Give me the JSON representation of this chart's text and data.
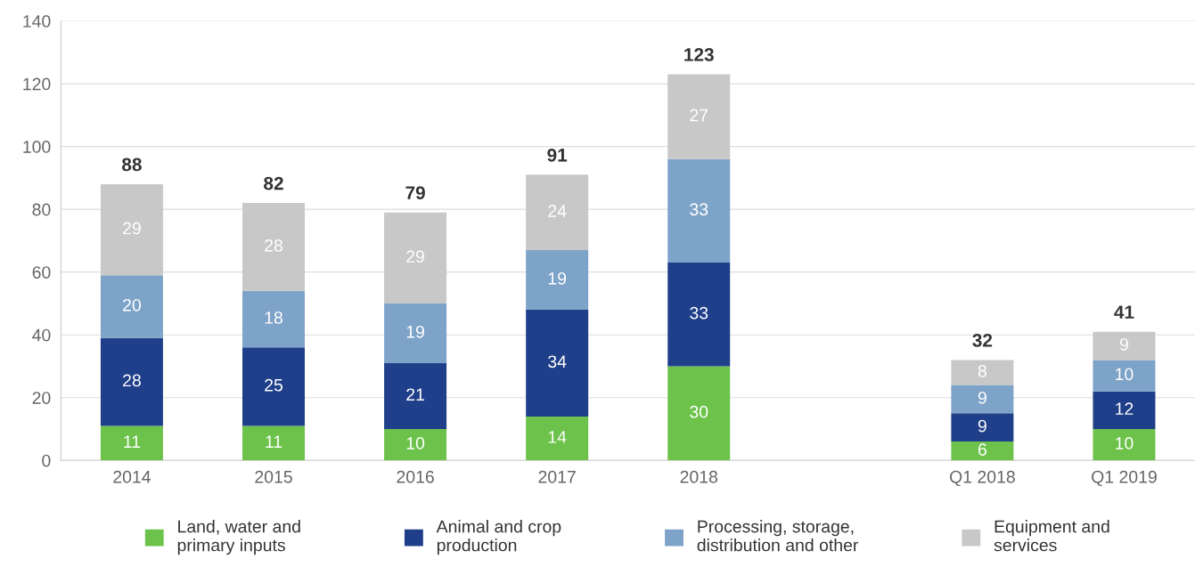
{
  "chart_data": {
    "type": "bar",
    "stacked": true,
    "categories": [
      "2014",
      "2015",
      "2016",
      "2017",
      "2018",
      null,
      "Q1 2018",
      "Q1 2019"
    ],
    "series": [
      {
        "name": "Land, water and\nprimary inputs",
        "color": "#6cc24a",
        "values": [
          11,
          11,
          10,
          14,
          30,
          null,
          6,
          10
        ]
      },
      {
        "name": "Animal and crop\nproduction",
        "color": "#1f3f8a",
        "values": [
          28,
          25,
          21,
          34,
          33,
          null,
          9,
          12
        ]
      },
      {
        "name": "Processing, storage,\ndistribution and other",
        "color": "#7ea3c8",
        "values": [
          20,
          18,
          19,
          19,
          33,
          null,
          9,
          10
        ]
      },
      {
        "name": "Equipment and\nservices",
        "color": "#c8c8c8",
        "values": [
          29,
          28,
          29,
          24,
          27,
          null,
          8,
          9
        ]
      }
    ],
    "totals": [
      "88",
      "82",
      "79",
      "91",
      "123",
      null,
      "32",
      "41"
    ],
    "data_labels": true,
    "ylim": [
      0,
      140
    ],
    "yticks": [
      0,
      20,
      40,
      60,
      80,
      100,
      120,
      140
    ],
    "grid": "y",
    "legend": "bottom"
  }
}
